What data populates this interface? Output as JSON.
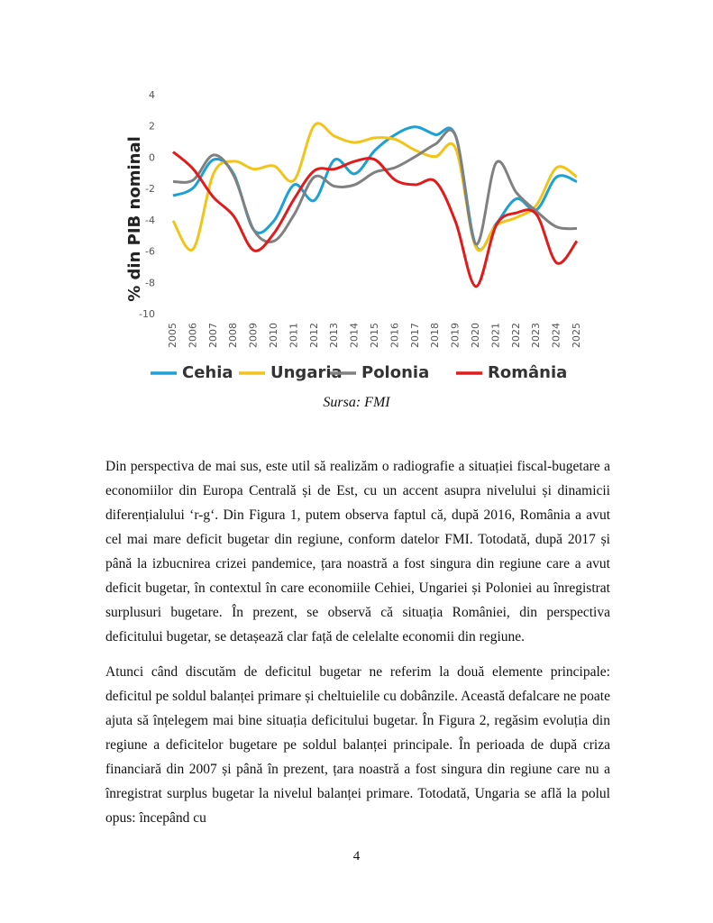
{
  "chart_data": {
    "type": "line",
    "ylabel": "% din PIB nominal",
    "categories": [
      "2005",
      "2006",
      "2007",
      "2008",
      "2009",
      "2010",
      "2011",
      "2012",
      "2013",
      "2014",
      "2015",
      "2016",
      "2017",
      "2018",
      "2019",
      "2020",
      "2021",
      "2022",
      "2023",
      "2024",
      "2025"
    ],
    "ylim": [
      -10,
      4
    ],
    "yticks": [
      -10,
      -8,
      -6,
      -4,
      -2,
      0,
      2,
      4
    ],
    "grid": false,
    "legend": "bottom",
    "series": [
      {
        "name": "Cehia",
        "color": "#1ba1d6",
        "values": [
          -2.4,
          -1.9,
          -0.1,
          -1.0,
          -4.6,
          -4.0,
          -1.7,
          -2.7,
          -0.1,
          -1.0,
          0.5,
          1.5,
          2.0,
          1.5,
          1.4,
          -5.6,
          -4.2,
          -2.6,
          -3.3,
          -1.2,
          -1.5
        ]
      },
      {
        "name": "Ungaria",
        "color": "#f2c418",
        "values": [
          -4.0,
          -5.8,
          -1.0,
          -0.2,
          -0.7,
          -0.5,
          -1.4,
          2.1,
          1.4,
          1.0,
          1.3,
          1.2,
          0.5,
          0.1,
          0.6,
          -5.7,
          -4.3,
          -3.8,
          -3.0,
          -0.6,
          -1.2
        ]
      },
      {
        "name": "Polonia",
        "color": "#808080",
        "values": [
          -1.5,
          -1.4,
          0.2,
          -1.1,
          -4.6,
          -5.3,
          -3.6,
          -1.2,
          -1.8,
          -1.7,
          -0.9,
          -0.6,
          0.1,
          0.9,
          1.4,
          -5.5,
          -0.3,
          -2.2,
          -3.4,
          -4.4,
          -4.5
        ]
      },
      {
        "name": "România",
        "color": "#e31a1c",
        "values": [
          0.4,
          -0.7,
          -2.5,
          -3.7,
          -5.9,
          -4.8,
          -2.6,
          -0.8,
          -0.7,
          -0.2,
          -0.1,
          -1.4,
          -1.7,
          -1.5,
          -4.1,
          -8.2,
          -4.3,
          -3.5,
          -3.6,
          -6.7,
          -5.3
        ]
      }
    ]
  },
  "caption": "Sursa: FMI",
  "paragraphs": [
    "Din perspectiva de mai sus, este util să realizăm o radiografie a situației fiscal-bugetare a economiilor din Europa Centrală și de Est, cu un accent asupra nivelului și dinamicii diferențialului ‘r-g‘. Din Figura 1, putem observa faptul că, după 2016, România a avut cel mai mare deficit bugetar din regiune, conform datelor FMI. Totodată, după 2017 și până la izbucnirea crizei pandemice, țara noastră a fost singura din regiune care a avut deficit bugetar, în contextul în care economiile Cehiei, Ungariei și Poloniei au înregistrat surplusuri bugetare. În prezent, se observă că situația României, din perspectiva deficitului bugetar, se detașează clar față de celelalte economii din regiune.",
    "Atunci când discutăm de deficitul bugetar ne referim la două elemente principale: deficitul pe soldul balanței primare și cheltuielile cu dobânzile. Această defalcare ne poate ajuta să înțelegem mai bine situația deficitului bugetar. În Figura 2, regăsim evoluția din regiune a deficitelor bugetare pe soldul balanței principale. În perioada de după criza financiară din 2007 și până în prezent, țara noastră a fost singura din regiune care nu a înregistrat surplus bugetar la nivelul balanței primare. Totodată, Ungaria se află la polul opus: începând cu"
  ],
  "page_number": "4"
}
